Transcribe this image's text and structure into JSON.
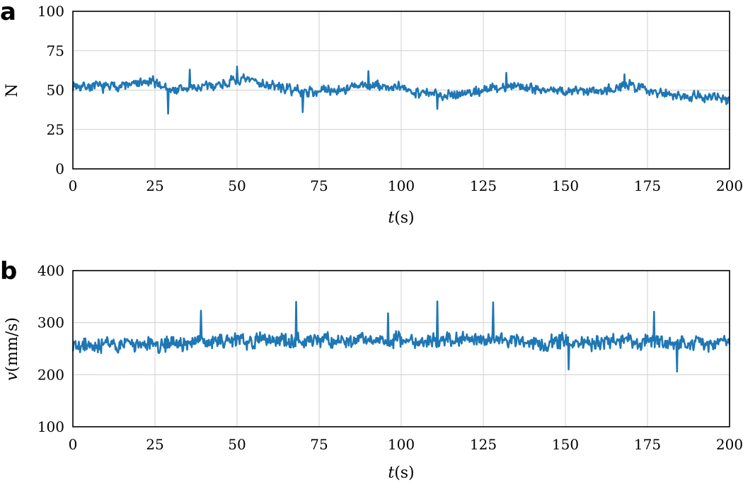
{
  "chart_data": [
    {
      "panel_label": "a",
      "type": "line",
      "xlabel": "t(s)",
      "xlabel_italic": "t",
      "xlabel_rest": "(s)",
      "ylabel": "N",
      "xlim": [
        0,
        200
      ],
      "ylim": [
        0,
        100
      ],
      "xticks": [
        0,
        25,
        50,
        75,
        100,
        125,
        150,
        175,
        200
      ],
      "yticks": [
        0,
        25,
        50,
        75,
        100
      ],
      "grid": true,
      "color": "#1f77b4",
      "baseline_profile": {
        "x": [
          0,
          10,
          20,
          25,
          30,
          40,
          50,
          55,
          60,
          70,
          80,
          90,
          100,
          110,
          120,
          125,
          135,
          145,
          150,
          160,
          170,
          180,
          190,
          200
        ],
        "y": [
          53,
          52,
          54,
          55,
          50,
          52,
          56,
          56,
          53,
          49,
          50,
          53,
          51,
          47,
          48,
          50,
          53,
          50,
          49,
          50,
          53,
          48,
          46,
          45
        ]
      },
      "noise_amplitude": 3.5,
      "spikes": [
        {
          "x": 29,
          "y": 35
        },
        {
          "x": 35.5,
          "y": 63
        },
        {
          "x": 50,
          "y": 65
        },
        {
          "x": 70,
          "y": 36
        },
        {
          "x": 90,
          "y": 62
        },
        {
          "x": 111,
          "y": 38
        },
        {
          "x": 132,
          "y": 61
        },
        {
          "x": 168,
          "y": 60
        },
        {
          "x": 199,
          "y": 41
        }
      ]
    },
    {
      "panel_label": "b",
      "type": "line",
      "xlabel": "t(s)",
      "xlabel_italic": "t",
      "xlabel_rest": "(s)",
      "ylabel": "v(mm/s)",
      "ylabel_italic": "v",
      "ylabel_rest": "(mm/s)",
      "xlim": [
        0,
        200
      ],
      "ylim": [
        100,
        400
      ],
      "xticks": [
        0,
        25,
        50,
        75,
        100,
        125,
        150,
        175,
        200
      ],
      "yticks": [
        100,
        200,
        300,
        400
      ],
      "grid": true,
      "color": "#1f77b4",
      "baseline_profile": {
        "x": [
          0,
          25,
          50,
          75,
          100,
          125,
          150,
          175,
          200
        ],
        "y": [
          257,
          258,
          265,
          266,
          265,
          268,
          262,
          263,
          260
        ]
      },
      "noise_amplitude": 16,
      "spikes": [
        {
          "x": 39,
          "y": 323
        },
        {
          "x": 68,
          "y": 340
        },
        {
          "x": 96,
          "y": 318
        },
        {
          "x": 111,
          "y": 341
        },
        {
          "x": 128,
          "y": 339
        },
        {
          "x": 151,
          "y": 210
        },
        {
          "x": 177,
          "y": 321
        },
        {
          "x": 184,
          "y": 206
        }
      ]
    }
  ]
}
